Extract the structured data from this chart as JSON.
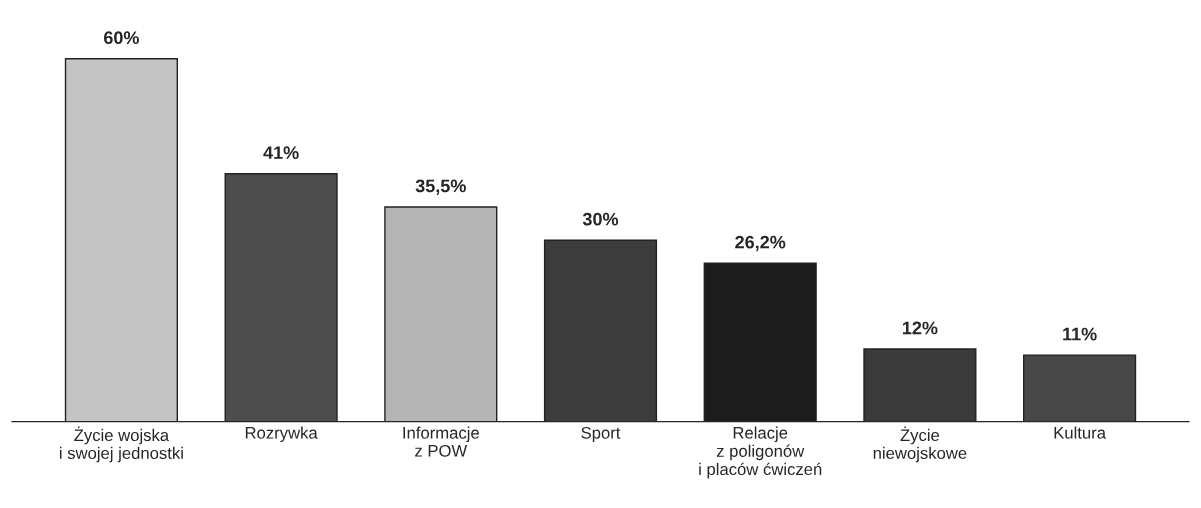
{
  "chart_data": {
    "type": "bar",
    "categories": [
      "Życie wojska\ni swojej jednostki",
      "Rozrywka",
      "Informacje\nz POW",
      "Sport",
      "Relacje\nz poligonów\ni placów ćwiczeń",
      "Życie\nniewojskowe",
      "Kultura"
    ],
    "values": [
      60,
      41,
      35.5,
      30,
      26.2,
      12,
      11
    ],
    "value_labels": [
      "60%",
      "41%",
      "35,5%",
      "30%",
      "26,2%",
      "12%",
      "11%"
    ],
    "colors": [
      "#c4c4c4",
      "#4d4d4d",
      "#b4b4b4",
      "#3c3c3c",
      "#1c1c1c",
      "#3a3a3a",
      "#474747"
    ],
    "tick_labels": "x",
    "grid": false,
    "legend": false
  }
}
